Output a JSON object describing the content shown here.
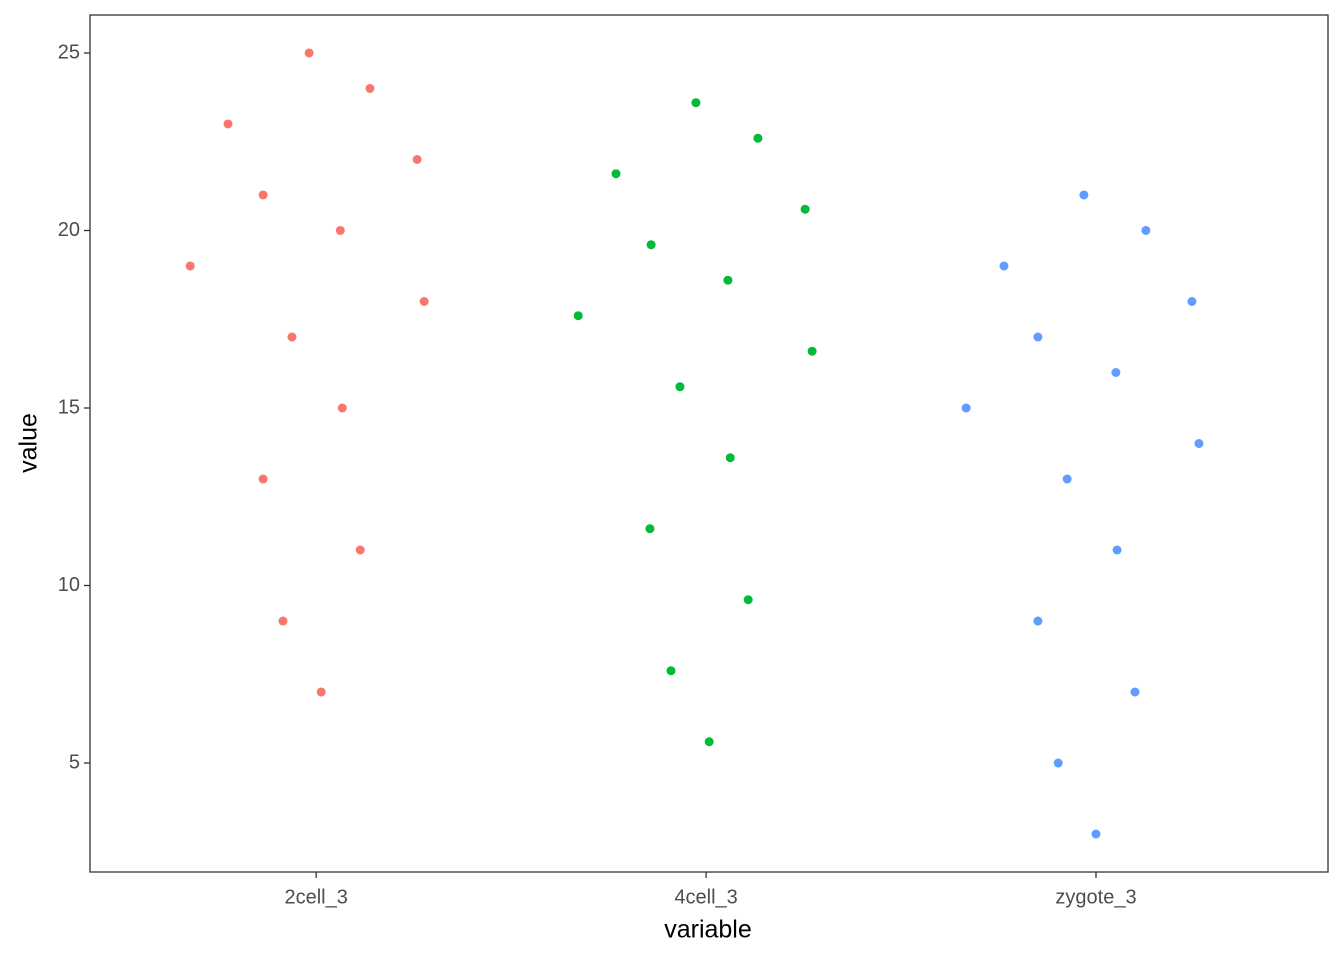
{
  "chart_data": {
    "type": "scatter",
    "x_label": "variable",
    "y_label": "value",
    "xlim": [
      0.42,
      3.595
    ],
    "ylim": [
      1.93,
      26.07
    ],
    "xticks": [
      {
        "value": 1,
        "label": "2cell_3"
      },
      {
        "value": 2,
        "label": "4cell_3"
      },
      {
        "value": 3,
        "label": "zygote_3"
      }
    ],
    "yticks": [
      5,
      10,
      15,
      20,
      25
    ],
    "series": [
      {
        "color": "#f8766d",
        "x": [
          0.982,
          1.138,
          0.774,
          1.259,
          0.864,
          1.062,
          0.677,
          1.277,
          0.938,
          1.067,
          0.864,
          1.113,
          0.915,
          1.013
        ],
        "values": [
          25,
          24,
          23,
          22,
          21,
          20,
          19,
          18,
          17,
          15,
          13,
          11,
          9,
          7
        ]
      },
      {
        "color": "#00ba38",
        "x": [
          1.974,
          2.133,
          1.769,
          2.254,
          1.859,
          2.056,
          1.672,
          2.272,
          1.933,
          2.062,
          1.856,
          2.108,
          1.91,
          2.008
        ],
        "values": [
          23.6,
          22.6,
          21.6,
          20.6,
          19.6,
          18.6,
          17.6,
          16.6,
          15.6,
          13.6,
          11.6,
          9.6,
          7.6,
          5.6
        ]
      },
      {
        "color": "#619cff",
        "x": [
          2.969,
          3.128,
          2.764,
          3.246,
          2.851,
          3.051,
          2.667,
          3.264,
          2.926,
          3.054,
          2.851,
          3.1,
          2.903,
          3.0
        ],
        "values": [
          21,
          20,
          19,
          18,
          17,
          16,
          15,
          14,
          13,
          11,
          9,
          7,
          5,
          3
        ]
      }
    ]
  }
}
